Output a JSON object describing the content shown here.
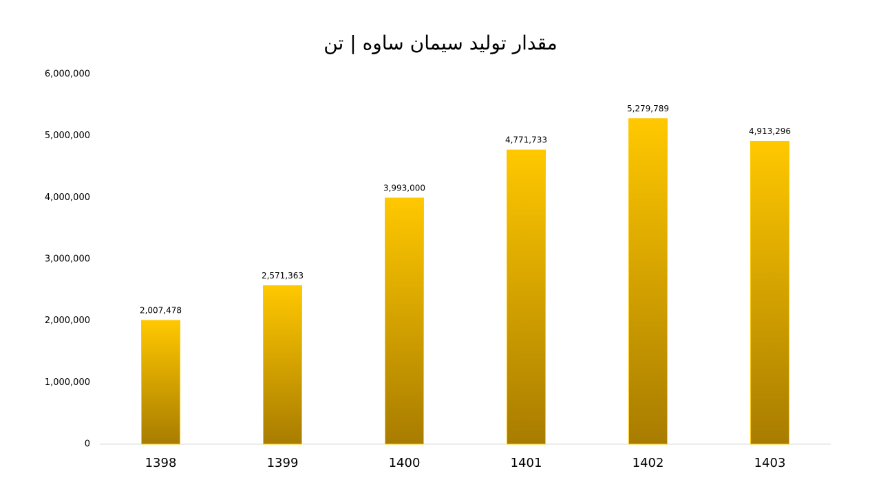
{
  "chart_data": {
    "type": "bar",
    "title": "مقدار تولید سیمان ساوه | تن",
    "categories": [
      "1398",
      "1399",
      "1400",
      "1401",
      "1402",
      "1403"
    ],
    "values": [
      2007478,
      2571363,
      3993000,
      4771733,
      5279789,
      4913296
    ],
    "value_labels": [
      "2,007,478",
      "2,571,363",
      "3,993,000",
      "4,771,733",
      "5,279,789",
      "4,913,296"
    ],
    "color": "#ffc800",
    "ylim": [
      0,
      6000000
    ],
    "yticks": [
      0,
      {
        "value": 1000000,
        "label": "1,000,000"
      },
      {
        "value": 2000000,
        "label": "2,000,000"
      },
      {
        "value": 3000000,
        "label": "3,000,000"
      },
      {
        "value": 4000000,
        "label": "4,000,000"
      },
      {
        "value": 5000000,
        "label": "5,000,000"
      },
      {
        "value": 6000000,
        "label": "6,000,000"
      }
    ],
    "grid": false
  }
}
